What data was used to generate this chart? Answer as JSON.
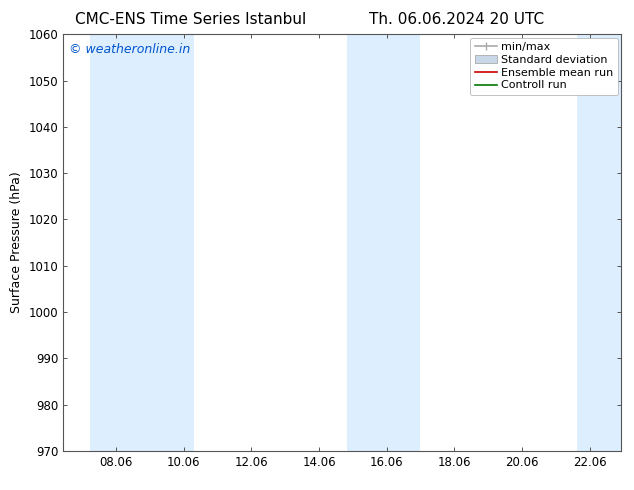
{
  "title_left": "CMC-ENS Time Series Istanbul",
  "title_right": "Th. 06.06.2024 20 UTC",
  "ylabel": "Surface Pressure (hPa)",
  "ylim": [
    970,
    1060
  ],
  "yticks": [
    970,
    980,
    990,
    1000,
    1010,
    1020,
    1030,
    1040,
    1050,
    1060
  ],
  "xlim": [
    6.5,
    23.0
  ],
  "xticks": [
    8.06,
    10.06,
    12.06,
    14.06,
    16.06,
    18.06,
    20.06,
    22.06
  ],
  "xtick_labels": [
    "08.06",
    "10.06",
    "12.06",
    "14.06",
    "16.06",
    "18.06",
    "20.06",
    "22.06"
  ],
  "watermark": "© weatheronline.in",
  "watermark_color": "#0055cc",
  "background_color": "#ffffff",
  "plot_bg_color": "#ffffff",
  "band_color": "#ddeeff",
  "legend_items": [
    {
      "label": "min/max",
      "color": "#aaaaaa",
      "type": "band_minmax"
    },
    {
      "label": "Standard deviation",
      "color": "#c8d8e8",
      "type": "band_std"
    },
    {
      "label": "Ensemble mean run",
      "color": "#cc0000",
      "type": "line"
    },
    {
      "label": "Controll run",
      "color": "#007700",
      "type": "line"
    }
  ],
  "shaded_bands": [
    {
      "x_start": 7.3,
      "x_end": 8.55
    },
    {
      "x_start": 8.55,
      "x_end": 10.35
    },
    {
      "x_start": 14.9,
      "x_end": 15.95
    },
    {
      "x_start": 15.95,
      "x_end": 17.05
    },
    {
      "x_start": 21.7,
      "x_end": 23.1
    }
  ],
  "title_fontsize": 11,
  "label_fontsize": 9,
  "tick_fontsize": 8.5,
  "legend_fontsize": 8,
  "watermark_fontsize": 9
}
